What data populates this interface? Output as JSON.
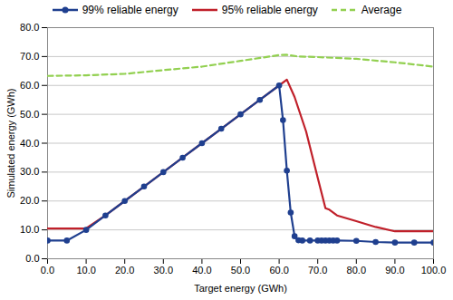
{
  "chart_data": {
    "type": "line",
    "x_label": "Target energy (GWh)",
    "y_label": "Simulated energy (GWh)",
    "xlim": [
      0,
      100
    ],
    "ylim": [
      0,
      80
    ],
    "xticks": [
      {
        "value": 0,
        "label": "0.0"
      },
      {
        "value": 10,
        "label": "10.0"
      },
      {
        "value": 20,
        "label": "20.0"
      },
      {
        "value": 30,
        "label": "30.0"
      },
      {
        "value": 40,
        "label": "40.0"
      },
      {
        "value": 50,
        "label": "50.0"
      },
      {
        "value": 60,
        "label": "60.0"
      },
      {
        "value": 70,
        "label": "70.0"
      },
      {
        "value": 80,
        "label": "80.0"
      },
      {
        "value": 90,
        "label": "90.0"
      },
      {
        "value": 100,
        "label": "100.0"
      }
    ],
    "yticks": [
      {
        "value": 0,
        "label": "0.0"
      },
      {
        "value": 10,
        "label": "10.0"
      },
      {
        "value": 20,
        "label": "20.0"
      },
      {
        "value": 30,
        "label": "30.0"
      },
      {
        "value": 40,
        "label": "40.0"
      },
      {
        "value": 50,
        "label": "50.0"
      },
      {
        "value": 60,
        "label": "60.0"
      },
      {
        "value": 70,
        "label": "70.0"
      },
      {
        "value": 80,
        "label": "80.0"
      }
    ],
    "grid": "y",
    "legend": "top",
    "series": [
      {
        "name": "99% reliable energy",
        "color": "#1f3f8f",
        "marker": "circle",
        "line_style": "solid",
        "x": [
          0,
          5,
          10,
          15,
          20,
          25,
          30,
          35,
          40,
          45,
          50,
          55,
          60,
          61,
          62,
          63,
          64,
          65,
          66,
          68,
          70,
          71,
          72,
          73,
          74,
          75,
          80,
          85,
          90,
          95,
          100
        ],
        "values": [
          6.3,
          6.3,
          10,
          15,
          20,
          25,
          30,
          35,
          40,
          45,
          50,
          55,
          60,
          48,
          30.5,
          16,
          7.8,
          6.4,
          6.3,
          6.3,
          6.3,
          6.3,
          6.3,
          6.3,
          6.3,
          6.3,
          6.2,
          5.8,
          5.6,
          5.6,
          5.6
        ]
      },
      {
        "name": "95% reliable energy",
        "color": "#c0202a",
        "line_style": "solid",
        "x": [
          0,
          10,
          15,
          20,
          25,
          30,
          35,
          40,
          45,
          50,
          55,
          60,
          62,
          64,
          67,
          70,
          72,
          73,
          75,
          80,
          85,
          90,
          100
        ],
        "values": [
          10.5,
          10.5,
          15,
          20,
          25,
          30,
          35,
          40,
          45,
          50,
          55,
          60,
          62,
          56,
          44,
          28,
          17.5,
          17,
          15,
          13,
          11,
          9.5,
          9.5
        ]
      },
      {
        "name": "Average",
        "color": "#92d050",
        "line_style": "dashed",
        "x": [
          0,
          10,
          20,
          30,
          40,
          50,
          60,
          62,
          65,
          70,
          80,
          90,
          100
        ],
        "values": [
          63.3,
          63.5,
          64,
          65.3,
          66.5,
          68.5,
          70.5,
          70.6,
          70,
          69.8,
          69.2,
          68,
          66.5
        ]
      }
    ]
  }
}
